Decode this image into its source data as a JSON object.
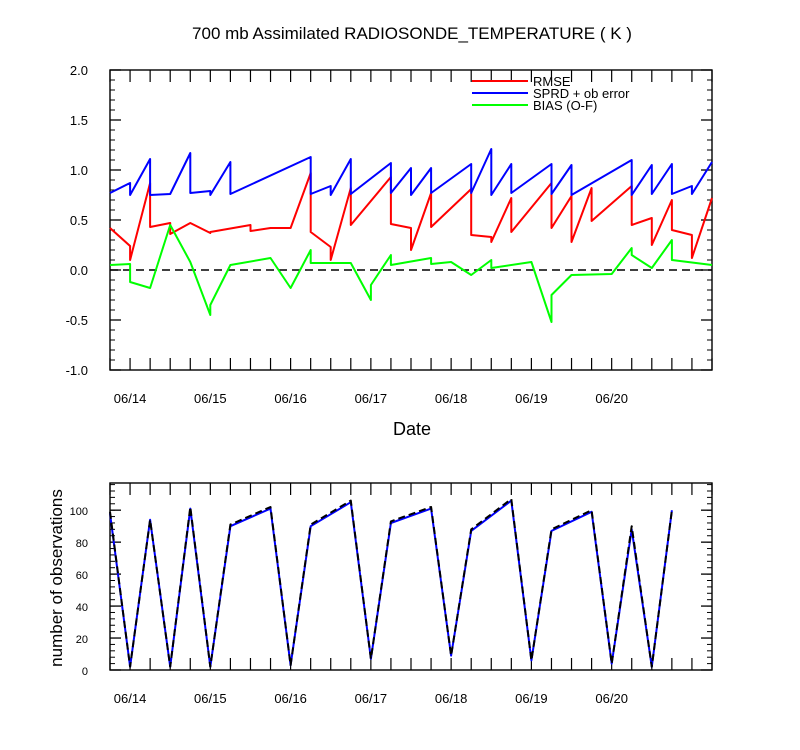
{
  "chart_data": [
    {
      "type": "line",
      "title": "700 mb Assimilated RADIOSONDE_TEMPERATURE ( K )",
      "xlabel": "Date",
      "ylabel": "",
      "ylim": [
        -1.0,
        2.0
      ],
      "yticks": [
        "-1.0",
        "-0.5",
        "0.0",
        "0.5",
        "1.0",
        "1.5",
        "2.0"
      ],
      "xtick_labels": [
        "06/14",
        "06/15",
        "06/16",
        "06/17",
        "06/18",
        "06/19",
        "06/20"
      ],
      "x_range": [
        "06/13 18Z",
        "06/20 12Z"
      ],
      "reference_line": {
        "y": 0.0,
        "style": "dashed"
      },
      "legend_placement": "top-right",
      "series": [
        {
          "name": "RMSE",
          "color": "#ff0000",
          "points": [
            [
              "06/13 18Z",
              0.42
            ],
            [
              "06/14 00Z",
              0.24
            ],
            [
              "06/14 00Z",
              0.1
            ],
            [
              "06/14 06Z",
              0.87
            ],
            [
              "06/14 06Z",
              0.43
            ],
            [
              "06/14 12Z",
              0.47
            ],
            [
              "06/14 12Z",
              0.36
            ],
            [
              "06/14 18Z",
              0.47
            ],
            [
              "06/15 00Z",
              0.37
            ],
            [
              "06/15 00Z",
              0.38
            ],
            [
              "06/15 12Z",
              0.45
            ],
            [
              "06/15 12Z",
              0.39
            ],
            [
              "06/15 18Z",
              0.42
            ],
            [
              "06/16 00Z",
              0.42
            ],
            [
              "06/16 06Z",
              0.97
            ],
            [
              "06/16 06Z",
              0.38
            ],
            [
              "06/16 12Z",
              0.23
            ],
            [
              "06/16 12Z",
              0.1
            ],
            [
              "06/16 18Z",
              0.82
            ],
            [
              "06/16 18Z",
              0.45
            ],
            [
              "06/17 06Z",
              0.93
            ],
            [
              "06/17 06Z",
              0.46
            ],
            [
              "06/17 12Z",
              0.42
            ],
            [
              "06/17 12Z",
              0.2
            ],
            [
              "06/17 18Z",
              0.77
            ],
            [
              "06/17 18Z",
              0.43
            ],
            [
              "06/18 06Z",
              0.81
            ],
            [
              "06/18 06Z",
              0.35
            ],
            [
              "06/18 12Z",
              0.33
            ],
            [
              "06/18 12Z",
              0.28
            ],
            [
              "06/18 18Z",
              0.72
            ],
            [
              "06/18 18Z",
              0.38
            ],
            [
              "06/19 06Z",
              0.87
            ],
            [
              "06/19 06Z",
              0.42
            ],
            [
              "06/19 12Z",
              0.74
            ],
            [
              "06/19 12Z",
              0.28
            ],
            [
              "06/19 18Z",
              0.82
            ],
            [
              "06/19 18Z",
              0.49
            ],
            [
              "06/20 06Z",
              0.84
            ],
            [
              "06/20 06Z",
              0.45
            ],
            [
              "06/20 12Z",
              0.52
            ],
            [
              "06/20 12Z",
              0.25
            ],
            [
              "06/20 18Z",
              0.7
            ],
            [
              "06/20 18Z",
              0.4
            ],
            [
              "06/21 00Z",
              0.35
            ],
            [
              "06/21 00Z",
              0.12
            ],
            [
              "06/21 06Z",
              0.72
            ]
          ]
        },
        {
          "name": "SPRD + ob error",
          "color": "#0000ff",
          "points": [
            [
              "06/13 18Z",
              0.77
            ],
            [
              "06/14 00Z",
              0.87
            ],
            [
              "06/14 00Z",
              0.75
            ],
            [
              "06/14 06Z",
              1.11
            ],
            [
              "06/14 06Z",
              0.75
            ],
            [
              "06/14 12Z",
              0.76
            ],
            [
              "06/14 12Z",
              0.76
            ],
            [
              "06/14 18Z",
              1.17
            ],
            [
              "06/14 18Z",
              0.77
            ],
            [
              "06/15 00Z",
              0.79
            ],
            [
              "06/15 00Z",
              0.75
            ],
            [
              "06/15 06Z",
              1.08
            ],
            [
              "06/15 06Z",
              0.76
            ],
            [
              "06/16 06Z",
              1.13
            ],
            [
              "06/16 06Z",
              0.76
            ],
            [
              "06/16 12Z",
              0.84
            ],
            [
              "06/16 12Z",
              0.75
            ],
            [
              "06/16 18Z",
              1.11
            ],
            [
              "06/16 18Z",
              0.76
            ],
            [
              "06/17 06Z",
              1.07
            ],
            [
              "06/17 06Z",
              0.77
            ],
            [
              "06/17 12Z",
              1.02
            ],
            [
              "06/17 12Z",
              0.75
            ],
            [
              "06/17 18Z",
              1.02
            ],
            [
              "06/17 18Z",
              0.77
            ],
            [
              "06/18 06Z",
              1.06
            ],
            [
              "06/18 06Z",
              0.77
            ],
            [
              "06/18 12Z",
              1.21
            ],
            [
              "06/18 12Z",
              0.75
            ],
            [
              "06/18 18Z",
              1.06
            ],
            [
              "06/18 18Z",
              0.77
            ],
            [
              "06/19 06Z",
              1.06
            ],
            [
              "06/19 06Z",
              0.76
            ],
            [
              "06/19 12Z",
              1.05
            ],
            [
              "06/19 12Z",
              0.75
            ],
            [
              "06/20 06Z",
              1.1
            ],
            [
              "06/20 06Z",
              0.75
            ],
            [
              "06/20 12Z",
              1.05
            ],
            [
              "06/20 12Z",
              0.76
            ],
            [
              "06/20 18Z",
              1.06
            ],
            [
              "06/20 18Z",
              0.76
            ],
            [
              "06/21 00Z",
              0.84
            ],
            [
              "06/21 00Z",
              0.76
            ],
            [
              "06/21 06Z",
              1.08
            ]
          ]
        },
        {
          "name": "BIAS (O-F)",
          "color": "#00ff00",
          "points": [
            [
              "06/13 18Z",
              0.05
            ],
            [
              "06/14 00Z",
              0.06
            ],
            [
              "06/14 00Z",
              -0.12
            ],
            [
              "06/14 06Z",
              -0.18
            ],
            [
              "06/14 12Z",
              0.45
            ],
            [
              "06/14 18Z",
              0.08
            ],
            [
              "06/15 00Z",
              -0.45
            ],
            [
              "06/15 00Z",
              -0.35
            ],
            [
              "06/15 06Z",
              0.05
            ],
            [
              "06/15 18Z",
              0.12
            ],
            [
              "06/16 00Z",
              -0.18
            ],
            [
              "06/16 06Z",
              0.2
            ],
            [
              "06/16 06Z",
              0.07
            ],
            [
              "06/16 18Z",
              0.07
            ],
            [
              "06/17 00Z",
              -0.3
            ],
            [
              "06/17 00Z",
              -0.15
            ],
            [
              "06/17 06Z",
              0.15
            ],
            [
              "06/17 06Z",
              0.05
            ],
            [
              "06/17 18Z",
              0.12
            ],
            [
              "06/17 18Z",
              0.06
            ],
            [
              "06/18 00Z",
              0.08
            ],
            [
              "06/18 06Z",
              -0.05
            ],
            [
              "06/18 12Z",
              0.1
            ],
            [
              "06/18 12Z",
              0.02
            ],
            [
              "06/19 00Z",
              0.08
            ],
            [
              "06/19 06Z",
              -0.52
            ],
            [
              "06/19 06Z",
              -0.25
            ],
            [
              "06/19 12Z",
              -0.05
            ],
            [
              "06/20 00Z",
              -0.04
            ],
            [
              "06/20 06Z",
              0.22
            ],
            [
              "06/20 06Z",
              0.15
            ],
            [
              "06/20 12Z",
              0.02
            ],
            [
              "06/20 18Z",
              0.3
            ],
            [
              "06/20 18Z",
              0.1
            ],
            [
              "06/21 06Z",
              0.05
            ]
          ]
        }
      ]
    },
    {
      "type": "line",
      "title": "",
      "xlabel": "",
      "ylabel": "number of observations",
      "ylim": [
        0,
        117
      ],
      "yticks": [
        "0",
        "20",
        "40",
        "60",
        "80",
        "100"
      ],
      "xtick_labels": [
        "06/14",
        "06/15",
        "06/16",
        "06/17",
        "06/18",
        "06/19",
        "06/20"
      ],
      "x_range": [
        "06/13 18Z",
        "06/20 12Z"
      ],
      "series": [
        {
          "line_style": "solid",
          "color": "#0000ff",
          "points": [
            [
              "06/13 18Z",
              98
            ],
            [
              "06/14 00Z",
              2
            ],
            [
              "06/14 06Z",
              94
            ],
            [
              "06/14 12Z",
              2
            ],
            [
              "06/14 18Z",
              101
            ],
            [
              "06/15 00Z",
              2
            ],
            [
              "06/15 06Z",
              90
            ],
            [
              "06/15 18Z",
              101
            ],
            [
              "06/16 00Z",
              3
            ],
            [
              "06/16 06Z",
              90
            ],
            [
              "06/16 18Z",
              105
            ],
            [
              "06/17 00Z",
              7
            ],
            [
              "06/17 06Z",
              92
            ],
            [
              "06/17 18Z",
              101
            ],
            [
              "06/18 00Z",
              9
            ],
            [
              "06/18 06Z",
              87
            ],
            [
              "06/18 18Z",
              106
            ],
            [
              "06/19 00Z",
              6
            ],
            [
              "06/19 06Z",
              87
            ],
            [
              "06/19 18Z",
              99
            ],
            [
              "06/20 00Z",
              4
            ],
            [
              "06/20 06Z",
              88
            ],
            [
              "06/20 12Z",
              2
            ],
            [
              "06/20 18Z",
              100
            ]
          ]
        },
        {
          "line_style": "dashed",
          "color": "#000000",
          "points": [
            [
              "06/13 18Z",
              99
            ],
            [
              "06/14 00Z",
              2
            ],
            [
              "06/14 06Z",
              94
            ],
            [
              "06/14 12Z",
              2
            ],
            [
              "06/14 18Z",
              102
            ],
            [
              "06/15 00Z",
              2
            ],
            [
              "06/15 06Z",
              91
            ],
            [
              "06/15 18Z",
              102
            ],
            [
              "06/16 00Z",
              3
            ],
            [
              "06/16 06Z",
              91
            ],
            [
              "06/16 18Z",
              106
            ],
            [
              "06/17 00Z",
              7
            ],
            [
              "06/17 06Z",
              93
            ],
            [
              "06/17 18Z",
              102
            ],
            [
              "06/18 00Z",
              9
            ],
            [
              "06/18 06Z",
              88
            ],
            [
              "06/18 18Z",
              107
            ],
            [
              "06/19 00Z",
              6
            ],
            [
              "06/19 06Z",
              88
            ],
            [
              "06/19 18Z",
              100
            ],
            [
              "06/20 00Z",
              4
            ],
            [
              "06/20 06Z",
              90
            ],
            [
              "06/20 12Z",
              2
            ],
            [
              "06/20 18Z",
              100
            ]
          ]
        }
      ]
    }
  ]
}
